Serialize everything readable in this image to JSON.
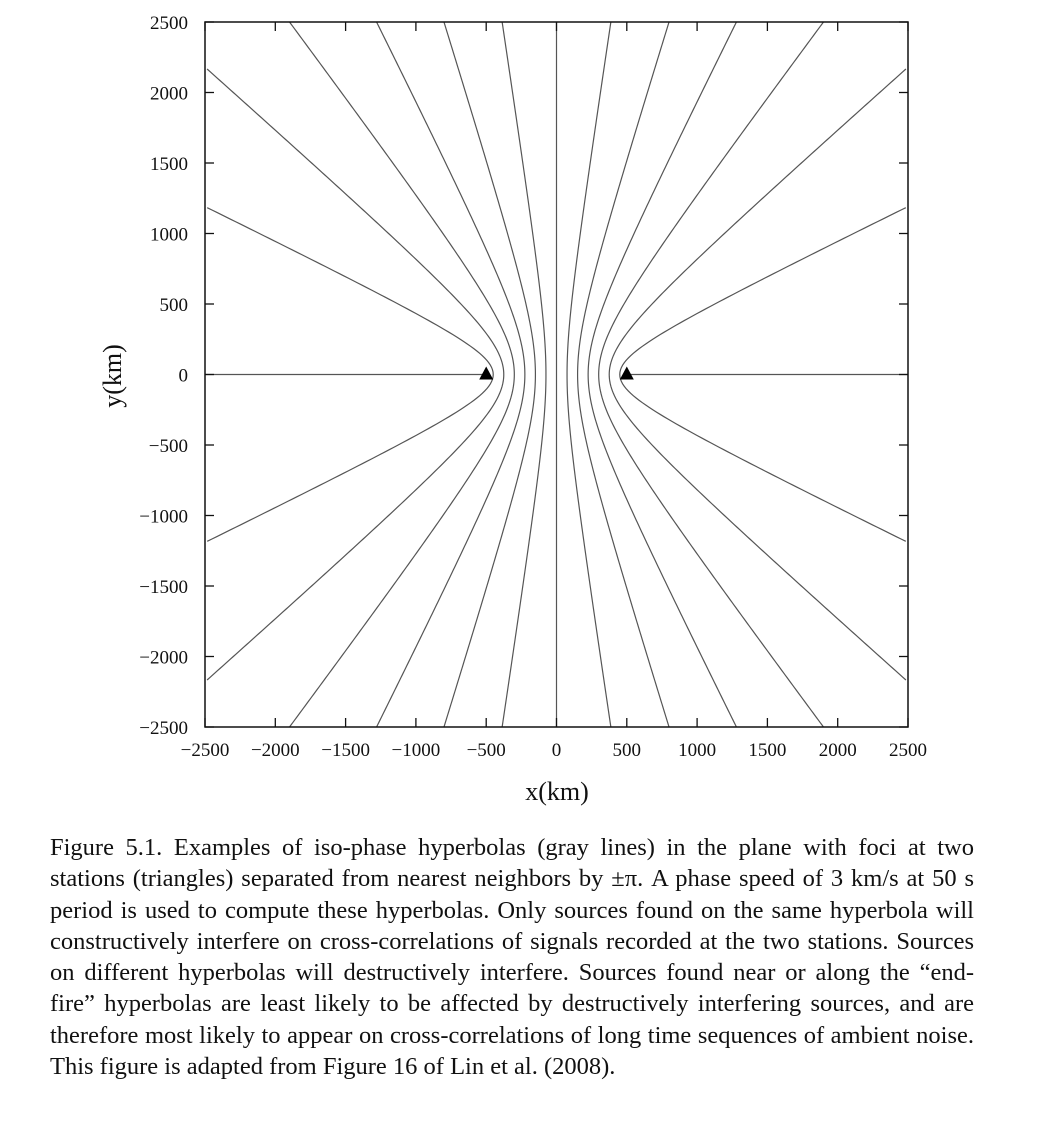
{
  "chart_data": {
    "type": "line",
    "xlabel": "x(km)",
    "ylabel": "y(km)",
    "xlim": [
      -2500,
      2500
    ],
    "ylim": [
      -2500,
      2500
    ],
    "xticks": [
      -2500,
      -2000,
      -1500,
      -1000,
      -500,
      0,
      500,
      1000,
      1500,
      2000,
      2500
    ],
    "yticks": [
      2500,
      2000,
      1500,
      1000,
      500,
      0,
      -500,
      -1000,
      -1500,
      -2000,
      -2500
    ],
    "xtick_labels": [
      "−2500",
      "−2000",
      "−1500",
      "−1000",
      "−500",
      "0",
      "500",
      "1000",
      "1500",
      "2000",
      "2500"
    ],
    "ytick_labels": [
      "2500",
      "2000",
      "1500",
      "1000",
      "500",
      "0",
      "−500",
      "−1000",
      "−1500",
      "−2000",
      "−2500"
    ],
    "grid": false,
    "stations": [
      {
        "x": -500,
        "y": 0
      },
      {
        "x": 500,
        "y": 0
      }
    ],
    "hyperbola_focal_half_distance_km": 500,
    "hyperbola_spacing_km": 75,
    "hyperbola_offsets_km": [
      -450,
      -375,
      -300,
      -225,
      -150,
      -75,
      0,
      75,
      150,
      225,
      300,
      375,
      450
    ],
    "line_color": "#555555",
    "station_color": "#000000"
  },
  "caption": {
    "text": "Figure 5.1.  Examples of iso-phase hyperbolas (gray lines) in the plane with foci at two stations (triangles) separated from nearest neighbors by ±π. A phase speed of 3 km/s at 50 s period is used to compute these hyperbolas. Only sources found on the same hyperbola will constructively interfere on cross-correlations of signals recorded at the two stations. Sources on different hyperbolas will destructively interfere. Sources found near or along the “end-fire” hyperbolas are least likely to be affected by destructively interfering sources, and are therefore most likely to appear on cross-correlations of long time sequences of ambient noise. This figure is adapted from Figure 16 of Lin et al. (2008)."
  }
}
